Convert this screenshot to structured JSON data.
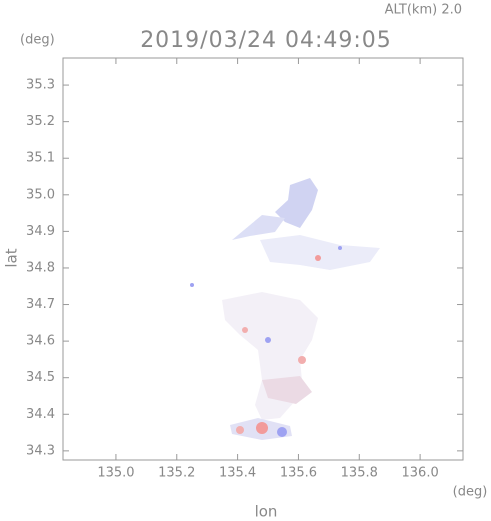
{
  "chart_data": {
    "type": "radar-map",
    "title": "2019/03/24 04:49:05",
    "altitude_label": "ALT(km) 2.0",
    "y_unit": "(deg)",
    "x_unit": "(deg)",
    "xlabel": "lon",
    "ylabel": "lat",
    "xlim": [
      134.826,
      136.141
    ],
    "ylim": [
      34.275,
      35.374
    ],
    "xticks": [
      {
        "value": 135.0,
        "label": "135.0"
      },
      135.2,
      135.4,
      135.6,
      135.8,
      {
        "value": 136.0,
        "label": "136.0"
      }
    ],
    "yticks": [
      34.3,
      34.4,
      34.5,
      34.6,
      34.7,
      34.8,
      34.9,
      {
        "value": 35.0,
        "label": "35.0"
      },
      35.1,
      35.2,
      35.3
    ]
  }
}
